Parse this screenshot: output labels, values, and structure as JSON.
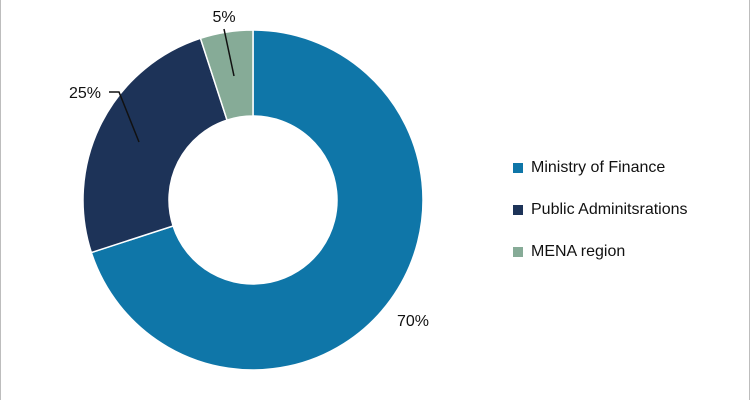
{
  "chart_data": {
    "type": "pie",
    "variant": "donut",
    "title": "",
    "slices": [
      {
        "label": "Ministry of Finance",
        "value": 70,
        "display": "70%",
        "color": "#0f76a8"
      },
      {
        "label": "Public Adminitsrations",
        "value": 25,
        "display": "25%",
        "color": "#1d3358"
      },
      {
        "label": "MENA region",
        "value": 5,
        "display": "5%",
        "color": "#86ab97"
      }
    ],
    "legend_placement": "right"
  }
}
